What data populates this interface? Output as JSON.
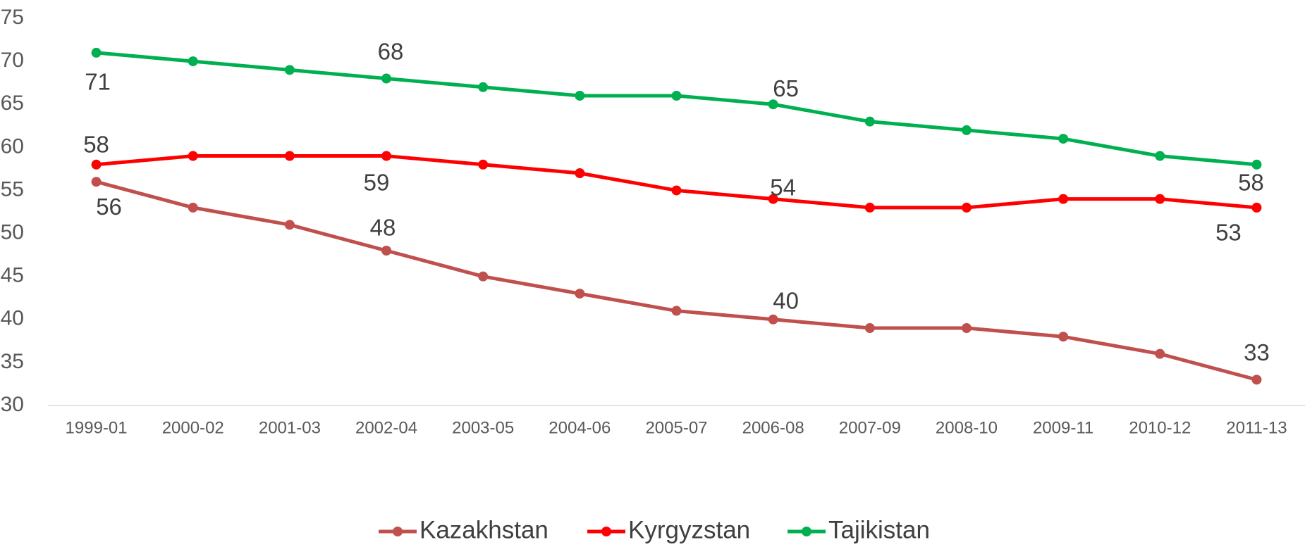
{
  "chart_data": {
    "type": "line",
    "categories": [
      "1999-01",
      "2000-02",
      "2001-03",
      "2002-04",
      "2003-05",
      "2004-06",
      "2005-07",
      "2006-08",
      "2007-09",
      "2008-10",
      "2009-11",
      "2010-12",
      "2011-13"
    ],
    "series": [
      {
        "name": "Kazakhstan",
        "color": "#c0504d",
        "values": [
          56,
          53,
          51,
          48,
          45,
          43,
          41,
          40,
          39,
          39,
          38,
          36,
          33
        ],
        "value_labels": [
          "56",
          null,
          null,
          "48",
          null,
          null,
          null,
          "40",
          null,
          null,
          null,
          null,
          "33"
        ]
      },
      {
        "name": "Kyrgyzstan",
        "color": "#ff0000",
        "values": [
          58,
          59,
          59,
          59,
          58,
          57,
          55,
          54,
          53,
          53,
          54,
          54,
          53
        ],
        "value_labels": [
          "58",
          null,
          null,
          "59",
          null,
          null,
          null,
          "54",
          null,
          null,
          null,
          null,
          "53"
        ]
      },
      {
        "name": "Tajikistan",
        "color": "#00b050",
        "values": [
          71,
          70,
          69,
          68,
          67,
          66,
          66,
          65,
          63,
          62,
          61,
          59,
          58
        ],
        "value_labels": [
          "71",
          null,
          null,
          "68",
          null,
          null,
          null,
          "65",
          null,
          null,
          null,
          null,
          "58"
        ]
      }
    ],
    "ylim": [
      30,
      75
    ],
    "yticks": [
      30,
      35,
      40,
      45,
      50,
      55,
      60,
      65,
      70,
      75
    ],
    "grid": false,
    "legend": "bottom"
  }
}
